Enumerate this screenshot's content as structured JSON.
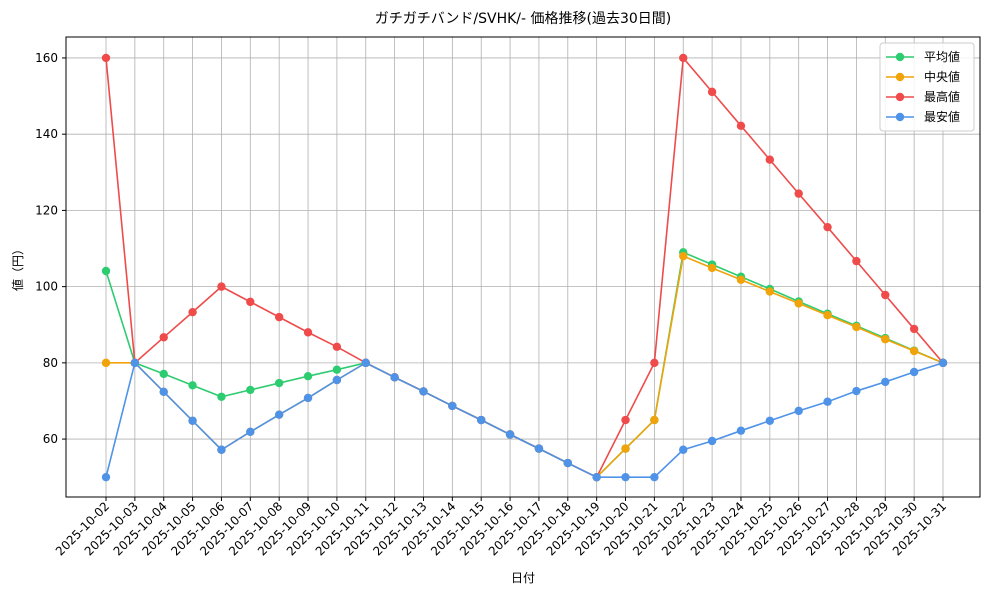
{
  "chart_data": {
    "type": "line",
    "title": "ガチガチバンド/SVHK/- 価格推移(過去30日間)",
    "x_label": "日付",
    "y_label": "値（円）",
    "categories": [
      "2025-10-02",
      "2025-10-03",
      "2025-10-04",
      "2025-10-05",
      "2025-10-06",
      "2025-10-07",
      "2025-10-08",
      "2025-10-09",
      "2025-10-10",
      "2025-10-11",
      "2025-10-12",
      "2025-10-13",
      "2025-10-14",
      "2025-10-15",
      "2025-10-16",
      "2025-10-17",
      "2025-10-18",
      "2025-10-19",
      "2025-10-20",
      "2025-10-21",
      "2025-10-22",
      "2025-10-23",
      "2025-10-24",
      "2025-10-25",
      "2025-10-26",
      "2025-10-27",
      "2025-10-28",
      "2025-10-29",
      "2025-10-30",
      "2025-10-31"
    ],
    "series": [
      {
        "name": "平均値",
        "color": "#2ecc71",
        "values": [
          104.1,
          80,
          77.1,
          74.1,
          71.1,
          72.9,
          74.7,
          76.5,
          78.2,
          80,
          76.2,
          72.5,
          68.7,
          65,
          61.2,
          57.5,
          53.7,
          50,
          57.5,
          65,
          109,
          105.8,
          102.6,
          99.4,
          96.1,
          92.9,
          89.7,
          86.5,
          83.2,
          80
        ]
      },
      {
        "name": "中央値",
        "color": "#f0a30a",
        "values": [
          80,
          80,
          72.4,
          64.8,
          57.2,
          61.9,
          66.4,
          70.8,
          75.5,
          80,
          76.2,
          72.5,
          68.7,
          65,
          61.2,
          57.5,
          53.7,
          50,
          57.5,
          65,
          108,
          104.9,
          101.8,
          98.7,
          95.6,
          92.5,
          89.4,
          86.2,
          83.1,
          80
        ]
      },
      {
        "name": "最高値",
        "color": "#ef4b4b",
        "values": [
          160,
          80,
          86.7,
          93.3,
          100,
          96,
          92,
          88,
          84.2,
          80,
          76.2,
          72.5,
          68.7,
          65,
          61.2,
          57.5,
          53.7,
          50,
          65,
          80,
          160,
          151.1,
          142.2,
          133.3,
          124.4,
          115.6,
          106.7,
          97.8,
          88.9,
          80
        ]
      },
      {
        "name": "最安値",
        "color": "#4f93e8",
        "values": [
          50,
          80,
          72.4,
          64.8,
          57.2,
          61.9,
          66.4,
          70.8,
          75.5,
          80,
          76.2,
          72.5,
          68.7,
          65,
          61.2,
          57.5,
          53.7,
          50,
          50,
          50,
          57.2,
          59.5,
          62.2,
          64.8,
          67.4,
          69.8,
          72.6,
          75,
          77.6,
          80
        ]
      }
    ],
    "ylim": [
      44.8,
      165.5
    ],
    "yticks": [
      60,
      80,
      100,
      120,
      140,
      160
    ],
    "grid": true,
    "legend": "upper right"
  }
}
